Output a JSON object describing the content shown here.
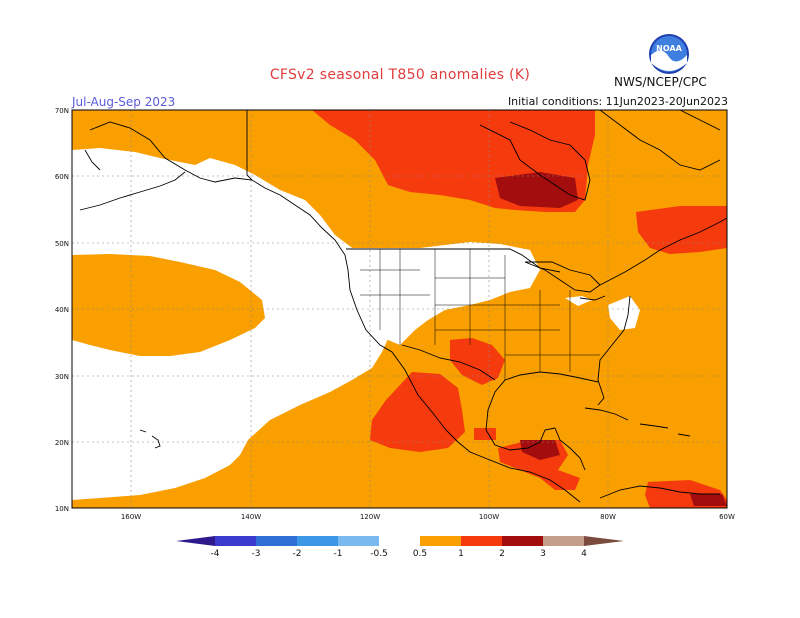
{
  "header": {
    "title": "CFSv2 seasonal T850 anomalies (K)",
    "season": "Jul-Aug-Sep 2023",
    "initial_conditions": "Initial conditions: 11Jun2023-20Jun2023",
    "agency": "NWS/NCEP/CPC",
    "logo_text": "NOAA"
  },
  "axes": {
    "lat_labels": [
      "70N",
      "60N",
      "50N",
      "40N",
      "30N",
      "20N",
      "10N"
    ],
    "lon_labels": [
      "160W",
      "140W",
      "120W",
      "100W",
      "80W",
      "60W"
    ]
  },
  "colorbar": {
    "labels": [
      "-4",
      "-3",
      "-2",
      "-1",
      "-0.5",
      "0.5",
      "1",
      "2",
      "3",
      "4"
    ],
    "colors": [
      "#2e1a8c",
      "#3a3acd",
      "#2f6fd6",
      "#3b98e6",
      "#7ab8f0",
      "#ffffff",
      "#f99f00",
      "#f53a0e",
      "#a30d0d",
      "#c59d8b",
      "#7a4a3c"
    ]
  },
  "legend_colors": {
    "anomaly_05_1": "#f99f00",
    "anomaly_1_2": "#f53a0e",
    "anomaly_2_3": "#a30d0d",
    "land_outline": "#000000",
    "grid": "#888888"
  }
}
